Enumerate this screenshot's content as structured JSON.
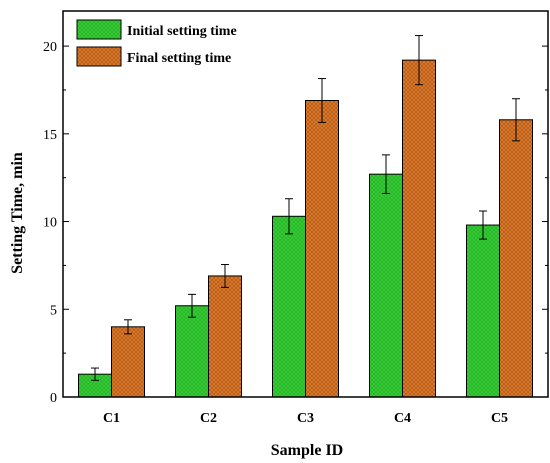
{
  "chart_data": {
    "type": "bar",
    "title": "",
    "xlabel": "Sample ID",
    "ylabel": "Setting Time, min",
    "categories": [
      "C1",
      "C2",
      "C3",
      "C4",
      "C5"
    ],
    "ylim": [
      0,
      22
    ],
    "yticks": [
      0,
      5,
      10,
      15,
      20
    ],
    "grid": false,
    "legend_position": "top-left",
    "series": [
      {
        "name": "Initial setting time",
        "color": "#33cc33",
        "pattern": "crosshatch",
        "values": [
          1.3,
          5.2,
          10.3,
          12.7,
          9.8
        ],
        "errors": [
          0.35,
          0.65,
          1.0,
          1.1,
          0.8
        ]
      },
      {
        "name": "Final setting time",
        "color": "#e07b2c",
        "pattern": "crosshatch",
        "values": [
          4.0,
          6.9,
          16.9,
          19.2,
          15.8
        ],
        "errors": [
          0.4,
          0.65,
          1.25,
          1.4,
          1.2
        ]
      }
    ]
  }
}
